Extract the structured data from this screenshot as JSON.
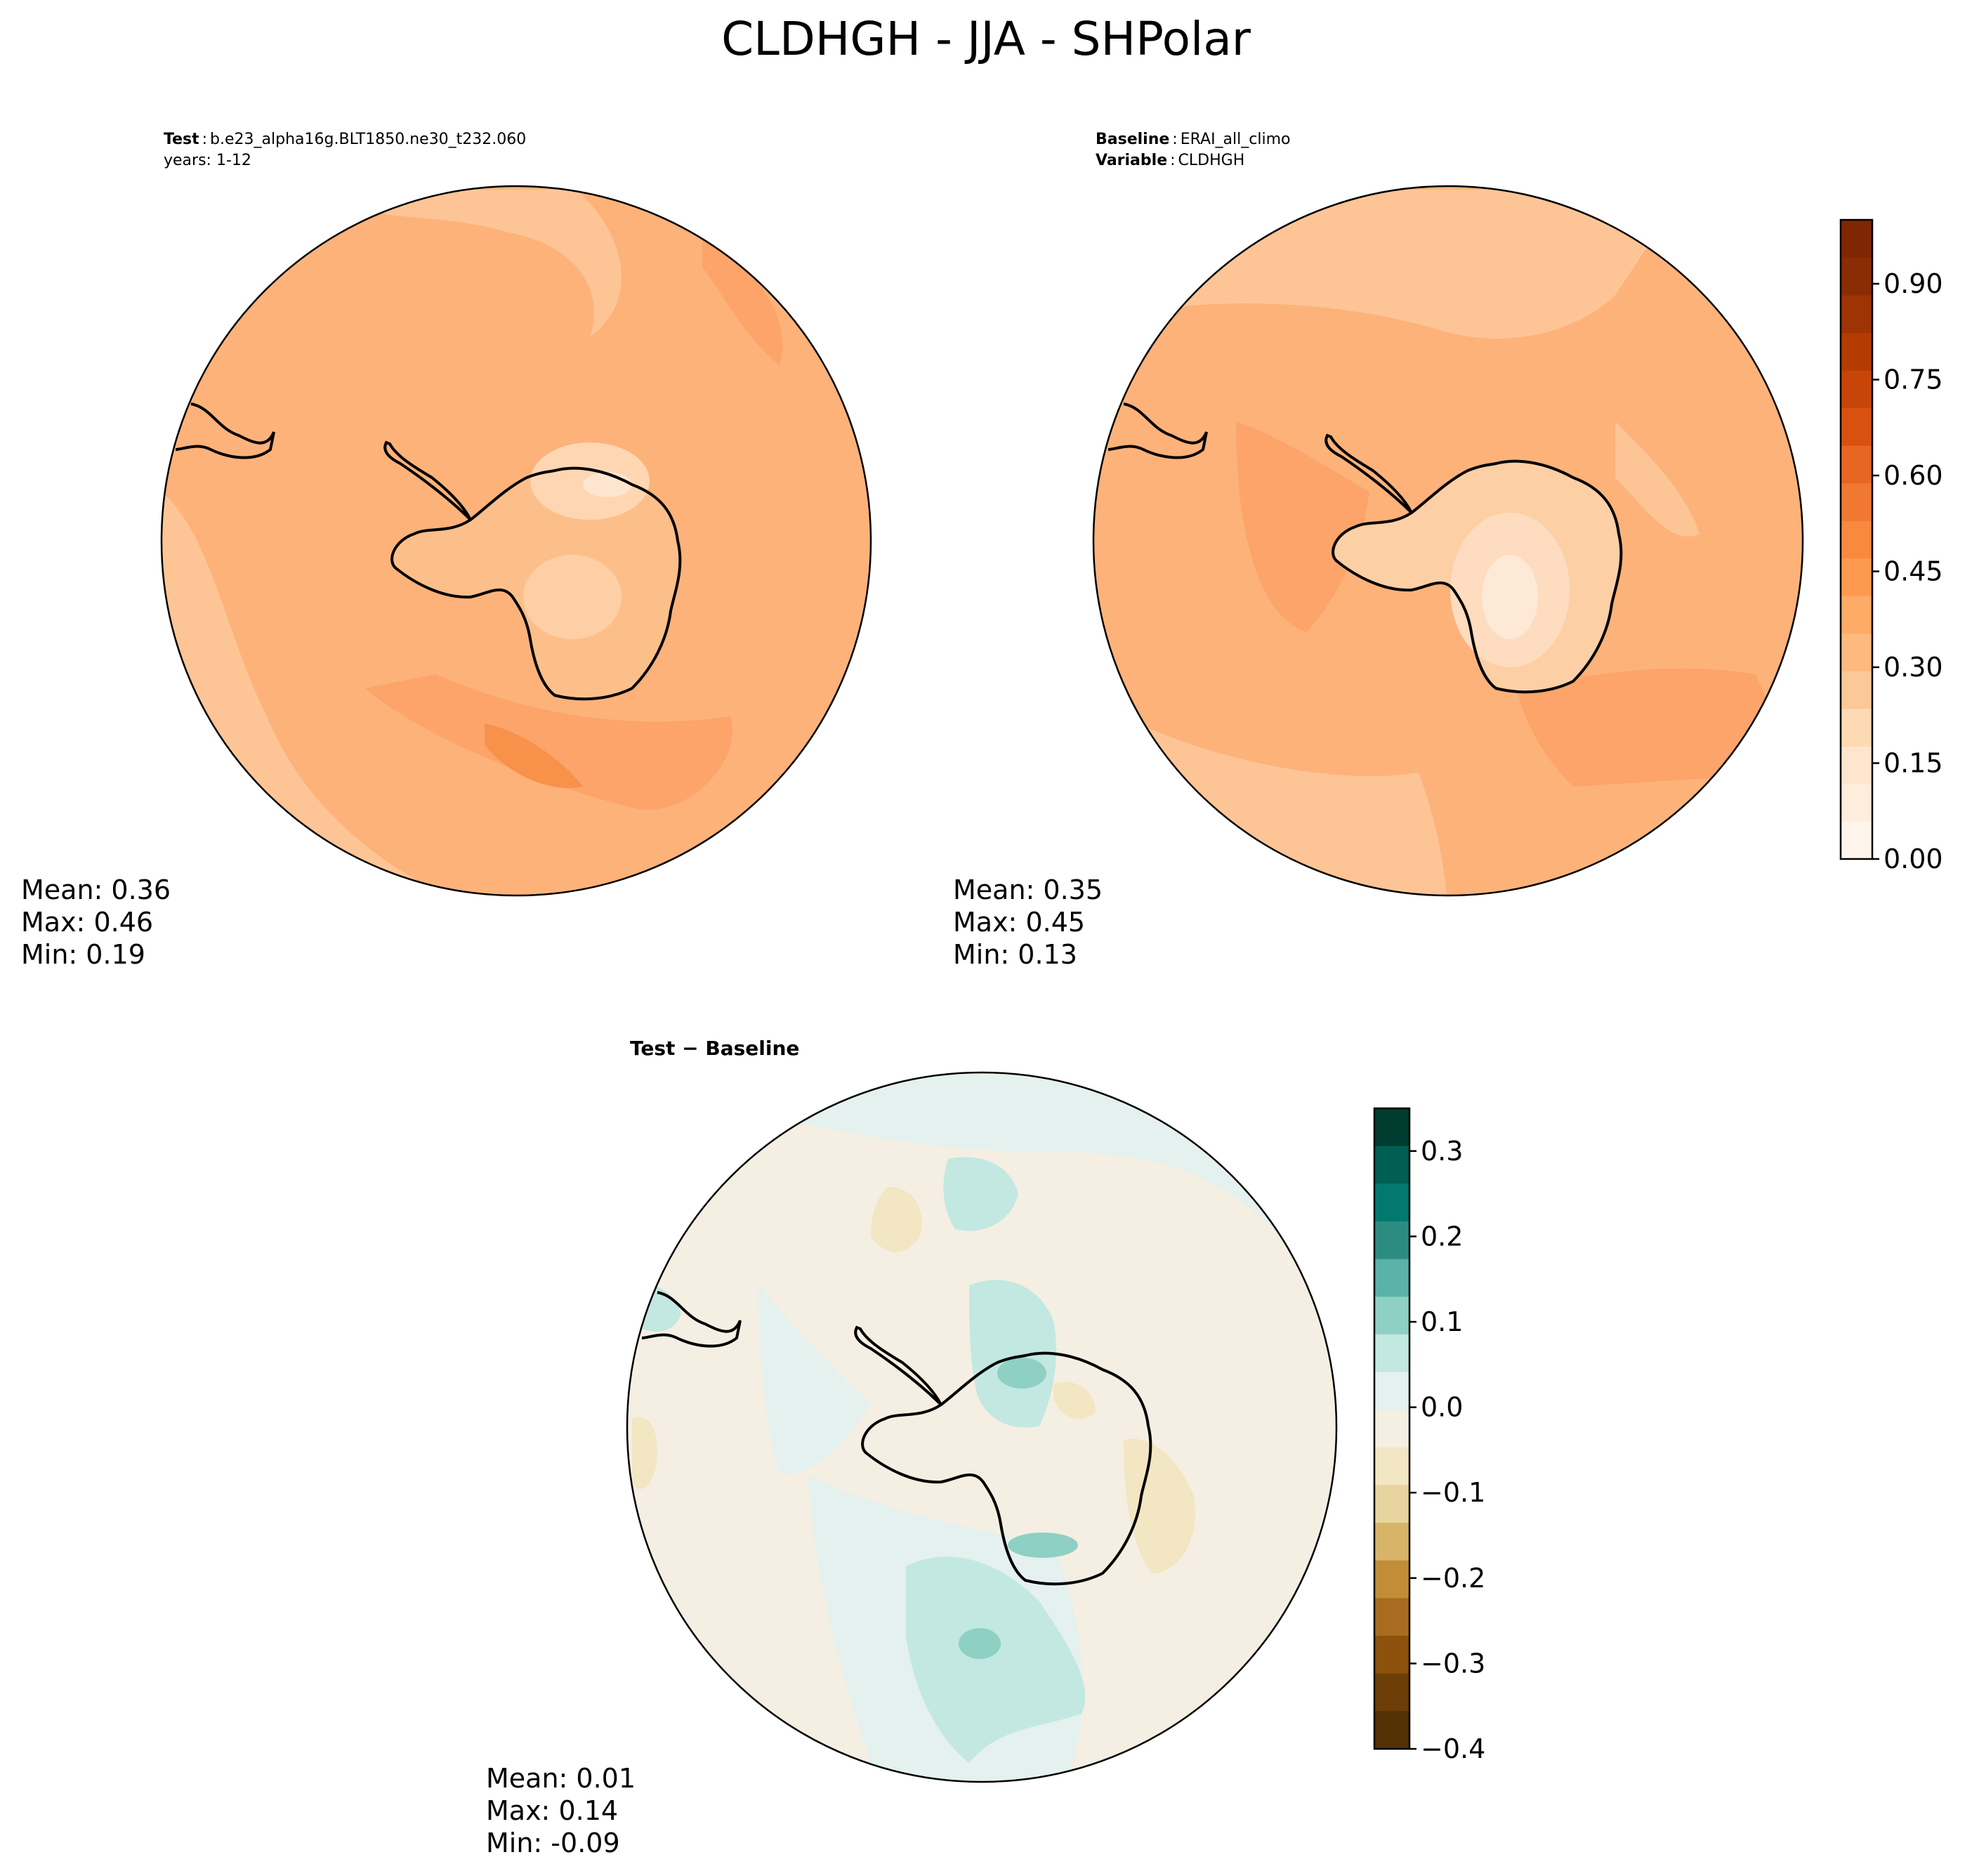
{
  "figure_title": "CLDHGH - JJA - SHPolar",
  "test_panel": {
    "label_bold": "Test",
    "label_value": "b.e23_alpha16g.BLT1850.ne30_t232.060",
    "years_line": "years: 1-12",
    "stats": {
      "mean": "Mean:  0.36",
      "max": "Max:  0.46",
      "min": "Min:  0.19"
    }
  },
  "baseline_panel": {
    "label_bold": "Baseline",
    "label_value": "ERAI_all_climo",
    "variable_bold": "Variable",
    "variable_value": "CLDHGH",
    "stats": {
      "mean": "Mean:  0.35",
      "max": "Max:  0.45",
      "min": "Min:  0.13"
    }
  },
  "diff_panel": {
    "title": "Test − Baseline",
    "stats": {
      "mean": "Mean:  0.01",
      "max": "Max:  0.14",
      "min": "Min: -0.09"
    }
  },
  "chart_data": [
    {
      "type": "heatmap",
      "name": "test",
      "projection": "south-polar-stereographic",
      "mean": 0.36,
      "max": 0.46,
      "min": 0.19,
      "colorbar": "shared-orange",
      "fill_levels": [
        0.28,
        0.33,
        0.36,
        0.38,
        0.4,
        0.42,
        0.45
      ]
    },
    {
      "type": "heatmap",
      "name": "baseline",
      "projection": "south-polar-stereographic",
      "mean": 0.35,
      "max": 0.45,
      "min": 0.13,
      "colorbar": "shared-orange",
      "fill_levels": [
        0.15,
        0.22,
        0.28,
        0.33,
        0.36,
        0.4,
        0.44
      ]
    },
    {
      "type": "heatmap",
      "name": "difference",
      "projection": "south-polar-stereographic",
      "mean": 0.01,
      "max": 0.14,
      "min": -0.09,
      "colorbar": "diverging-brown-teal",
      "fill_levels": [
        -0.08,
        -0.04,
        0.0,
        0.03,
        0.07,
        0.12
      ]
    }
  ],
  "colorbars": {
    "orange": {
      "range": [
        0,
        1
      ],
      "ticks": [
        0.0,
        0.15,
        0.3,
        0.45,
        0.6,
        0.75,
        0.9
      ],
      "tick_labels": [
        "0.00",
        "0.15",
        "0.30",
        "0.45",
        "0.60",
        "0.75",
        "0.90"
      ],
      "colors": [
        "#fff5eb",
        "#feeddb",
        "#fee6ce",
        "#fdd9b4",
        "#fdc897",
        "#fdb97e",
        "#fdab67",
        "#fd9a50",
        "#f8893f",
        "#f17832",
        "#e76624",
        "#d95111",
        "#c84509",
        "#b43c03",
        "#9e3303",
        "#8a2c04",
        "#7f2704"
      ]
    },
    "diverging": {
      "range": [
        -0.4,
        0.35
      ],
      "ticks": [
        0.3,
        0.2,
        0.1,
        0.0,
        -0.1,
        -0.2,
        -0.3,
        -0.4
      ],
      "tick_labels": [
        "0.3",
        "0.2",
        "0.1",
        "0.0",
        "−0.1",
        "−0.2",
        "−0.3",
        "−0.4"
      ],
      "colors": [
        "#003c30",
        "#005f52",
        "#01796f",
        "#2c8c81",
        "#5ab2a8",
        "#8fd0c4",
        "#c2e8e1",
        "#e4f1ee",
        "#f4efe2",
        "#f2e6c3",
        "#e8d49e",
        "#d7b467",
        "#c28d36",
        "#a96b20",
        "#8c510a",
        "#6d3e07",
        "#543005"
      ]
    }
  },
  "colors": {
    "map_land_light": "#fddcbc",
    "coastline": "#000000"
  }
}
